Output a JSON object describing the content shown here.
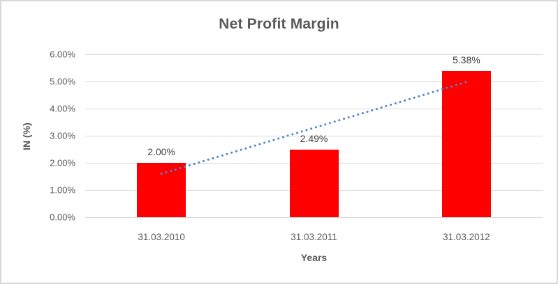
{
  "chart_data": {
    "type": "bar",
    "title": "Net Profit Margin",
    "categories": [
      "31.03.2010",
      "31.03.2011",
      "31.03.2012"
    ],
    "values": [
      2.0,
      2.49,
      5.38
    ],
    "value_labels": [
      "2.00%",
      "2.49%",
      "5.38%"
    ],
    "xlabel": "Years",
    "ylabel": "IN (%)",
    "ylim": [
      0,
      6
    ],
    "ytick_step": 1,
    "ytick_labels": [
      "0.00%",
      "1.00%",
      "2.00%",
      "3.00%",
      "4.00%",
      "5.00%",
      "6.00%"
    ],
    "grid": true,
    "legend": "none",
    "bar_color": "#ff0000",
    "trendline": {
      "type": "linear",
      "style": "dotted",
      "color": "#4a86c8",
      "start_value": 1.6,
      "end_value": 4.98
    }
  }
}
